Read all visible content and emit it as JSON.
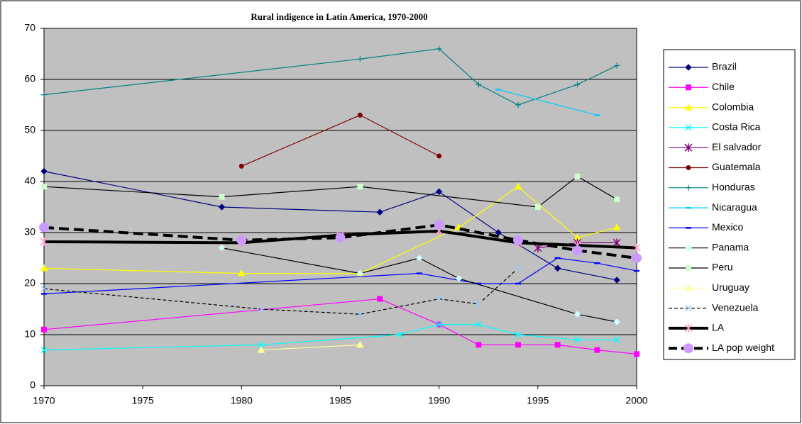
{
  "chart_data": {
    "type": "line",
    "title": "Rural indigence in Latin America, 1970-2000",
    "xlim": [
      1970,
      2000
    ],
    "xticks": [
      1970,
      1975,
      1980,
      1985,
      1990,
      1995,
      2000
    ],
    "ylim": [
      0,
      70
    ],
    "yticks": [
      0,
      10,
      20,
      30,
      40,
      50,
      60,
      70
    ],
    "grid": true,
    "legend": "right",
    "series": [
      {
        "name": "Brazil",
        "color": "#000080",
        "marker": "diamond",
        "x": [
          1970,
          1979,
          1987,
          1990,
          1993,
          1996,
          1999
        ],
        "values": [
          42,
          35,
          34,
          38,
          30,
          23,
          20.7
        ]
      },
      {
        "name": "Chile",
        "color": "#ff00ff",
        "marker": "square",
        "x": [
          1970,
          1987,
          1990,
          1992,
          1994,
          1996,
          1998,
          2000
        ],
        "values": [
          11,
          17,
          12,
          8,
          8,
          8,
          7,
          6.2
        ]
      },
      {
        "name": "Colombia",
        "color": "#ffff00",
        "marker": "triangle",
        "x": [
          1970,
          1980,
          1986,
          1991,
          1994,
          1997,
          1999
        ],
        "values": [
          23,
          22,
          22,
          31,
          39,
          29,
          31
        ]
      },
      {
        "name": "Costa Rica",
        "color": "#00ffff",
        "marker": "x",
        "x": [
          1970,
          1981,
          1988,
          1990,
          1992,
          1994,
          1997,
          1999
        ],
        "values": [
          7,
          8,
          10,
          12,
          12,
          10,
          9,
          9
        ]
      },
      {
        "name": "El salvador",
        "color": "#800080",
        "marker": "star",
        "x": [
          1995,
          1997,
          1999
        ],
        "values": [
          27,
          28,
          28
        ]
      },
      {
        "name": "Guatemala",
        "color": "#800000",
        "marker": "circle",
        "x": [
          1980,
          1986,
          1990
        ],
        "values": [
          43,
          53,
          45
        ]
      },
      {
        "name": "Honduras",
        "color": "#008080",
        "marker": "plus",
        "x": [
          1970,
          1986,
          1990,
          1992,
          1994,
          1997,
          1999
        ],
        "values": [
          57,
          64,
          66,
          59,
          55,
          59,
          62.7
        ]
      },
      {
        "name": "Nicaragua",
        "color": "#00ccff",
        "marker": "dash",
        "x": [
          1993,
          1998
        ],
        "values": [
          58,
          53
        ]
      },
      {
        "name": "Mexico",
        "color": "#0000ff",
        "marker": "dash",
        "x": [
          1970,
          1989,
          1992,
          1994,
          1996,
          1998,
          2000
        ],
        "values": [
          18,
          22,
          20,
          20,
          25,
          24,
          22.5
        ]
      },
      {
        "name": "Panama",
        "color": "#000000",
        "marker_color": "#ccffff",
        "marker": "diamond",
        "x": [
          1979,
          1986,
          1989,
          1991,
          1997,
          1999
        ],
        "values": [
          27,
          22,
          25,
          21,
          14,
          12.5
        ]
      },
      {
        "name": "Peru",
        "color": "#000000",
        "marker_color": "#ccffcc",
        "marker": "square",
        "x": [
          1970,
          1979,
          1986,
          1995,
          1997,
          1999
        ],
        "values": [
          39,
          37,
          39,
          35,
          41,
          36.5
        ]
      },
      {
        "name": "Uruguay",
        "color": "#ffff99",
        "marker": "triangle",
        "x": [
          1981,
          1986
        ],
        "values": [
          7,
          8
        ]
      },
      {
        "name": "Venezuela",
        "color": "#000000",
        "marker_color": "#99ccff",
        "marker": "x",
        "dash": true,
        "x": [
          1970,
          1981,
          1986,
          1990,
          1992,
          1994
        ],
        "values": [
          19,
          15,
          14,
          17,
          16,
          23
        ]
      },
      {
        "name": "LA",
        "color": "#000000",
        "marker_color": "#ff99cc",
        "marker": "star",
        "width": 4,
        "x": [
          1970,
          1980,
          1985,
          1990,
          1994,
          1997,
          2000
        ],
        "values": [
          28.2,
          28,
          29.5,
          30.3,
          28,
          27.5,
          27
        ]
      },
      {
        "name": "LA pop weight",
        "color": "#000000",
        "marker_color": "#cc99ff",
        "marker": "bigcircle",
        "width": 4,
        "dash": true,
        "x": [
          1970,
          1980,
          1985,
          1990,
          1994,
          1997,
          2000
        ],
        "values": [
          31,
          28.5,
          29,
          31.5,
          28.5,
          26.5,
          25
        ]
      }
    ]
  }
}
